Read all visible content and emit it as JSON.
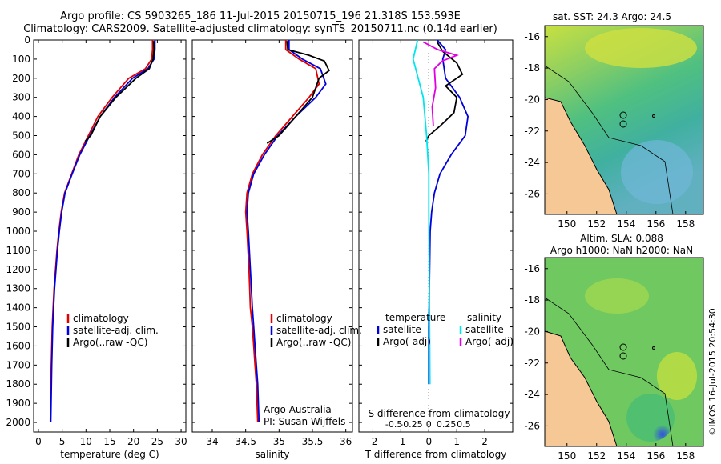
{
  "title_line1": "Argo profile: CS 5903265_186 11-Jul-2015 20150715_196 21.318S 153.593E",
  "title_line2": "Climatology: CARS2009. Satellite-adjusted climatology: synTS_20150711.nc (0.14d earlier)",
  "colors": {
    "climatology": "#e00000",
    "satellite": "#0000dd",
    "argo": "#000000",
    "sat_s": "#00e5ee",
    "argo_s": "#e000e0"
  },
  "depth_ticks": [
    "0",
    "100",
    "200",
    "300",
    "400",
    "500",
    "600",
    "700",
    "800",
    "900",
    "1000",
    "1100",
    "1200",
    "1300",
    "1400",
    "1500",
    "1600",
    "1700",
    "1800",
    "1900",
    "2000"
  ],
  "panel_temp": {
    "xlabel": "temperature (deg C)",
    "xticks": [
      "0",
      "5",
      "10",
      "15",
      "20",
      "25",
      "30"
    ],
    "legend": [
      "climatology",
      "satellite-adj. clim.",
      "Argo(..raw -QC)"
    ]
  },
  "panel_sal": {
    "xlabel": "salinity",
    "xticks": [
      "34",
      "34.5",
      "35",
      "35.5",
      "36"
    ],
    "legend": [
      "climatology",
      "satellite-adj. clim.",
      "Argo(..raw -QC)"
    ],
    "note1": "Argo Australia",
    "note2": "PI: Susan Wijffels"
  },
  "panel_diff": {
    "xlabel": "T difference from climatology",
    "top_label": "S difference from climatology",
    "xticks": [
      "-2",
      "-1",
      "0",
      "1",
      "2"
    ],
    "sticks": [
      "-0.5",
      "-0.25",
      "0",
      "0.25",
      "0.5"
    ],
    "leg_t_head": "temperature",
    "leg_s_head": "salinity",
    "leg_t": [
      "satellite",
      "Argo(-adj)"
    ],
    "leg_s": [
      "satellite",
      "Argo(-adj)"
    ]
  },
  "map_top": {
    "label": "sat. SST: 24.3 Argo: 24.5",
    "yticks": [
      "-16",
      "-18",
      "-20",
      "-22",
      "-24",
      "-26"
    ],
    "xticks": [
      "150",
      "152",
      "154",
      "156",
      "158"
    ]
  },
  "map_bottom": {
    "label1": "Altim. SLA: 0.088",
    "label2": "Argo h1000: NaN h2000: NaN",
    "yticks": [
      "-16",
      "-18",
      "-20",
      "-22",
      "-24",
      "-26"
    ],
    "xticks": [
      "150",
      "152",
      "154",
      "156",
      "158"
    ]
  },
  "watermark": "©IMOS 16-Jul-2015 20:54:30",
  "chart_data": [
    {
      "type": "line",
      "xlabel": "temperature (deg C)",
      "ylabel": "depth",
      "xlim": [
        -1,
        31
      ],
      "ylim": [
        2050,
        0
      ],
      "series": [
        {
          "name": "climatology",
          "x": [
            24,
            24,
            23.8,
            22.5,
            19,
            15.5,
            12.5,
            10.5,
            8.5,
            7,
            5.5,
            4.8,
            4.3,
            3.9,
            3.6,
            3.3,
            3.1,
            2.9,
            2.8,
            2.7,
            2.5
          ],
          "y": [
            0,
            50,
            100,
            150,
            200,
            300,
            400,
            500,
            600,
            700,
            800,
            900,
            1000,
            1100,
            1200,
            1300,
            1400,
            1500,
            1600,
            1700,
            2000
          ]
        },
        {
          "name": "satellite-adj. clim.",
          "x": [
            24.5,
            24.5,
            24.3,
            23,
            19.8,
            16,
            13,
            10.8,
            8.7,
            7.1,
            5.6,
            4.9,
            4.4,
            4,
            3.7,
            3.4,
            3.2,
            3,
            2.9,
            2.8,
            2.6
          ],
          "y": [
            0,
            50,
            100,
            150,
            200,
            300,
            400,
            500,
            600,
            700,
            800,
            900,
            1000,
            1100,
            1200,
            1300,
            1400,
            1500,
            1600,
            1700,
            2000
          ]
        },
        {
          "name": "Argo(..raw -QC)",
          "x": [
            24.2,
            24.3,
            24.1,
            23.3,
            20.5,
            16.3,
            13,
            11,
            9.8
          ],
          "y": [
            5,
            50,
            100,
            150,
            200,
            300,
            400,
            500,
            530
          ]
        }
      ]
    },
    {
      "type": "line",
      "xlabel": "salinity",
      "ylabel": "depth",
      "xlim": [
        33.7,
        36.1
      ],
      "ylim": [
        2050,
        0
      ],
      "series": [
        {
          "name": "climatology",
          "x": [
            35.1,
            35.1,
            35.3,
            35.55,
            35.6,
            35.45,
            35.2,
            34.95,
            34.75,
            34.6,
            34.52,
            34.5,
            34.52,
            34.55,
            34.57,
            34.6,
            34.62,
            34.64,
            34.66,
            34.68
          ],
          "y": [
            0,
            50,
            100,
            150,
            230,
            300,
            400,
            500,
            600,
            700,
            800,
            900,
            1000,
            1200,
            1400,
            1500,
            1600,
            1700,
            1800,
            2000
          ]
        },
        {
          "name": "satellite-adj. clim.",
          "x": [
            35.15,
            35.15,
            35.35,
            35.62,
            35.7,
            35.55,
            35.25,
            34.98,
            34.78,
            34.62,
            34.54,
            34.52,
            34.54,
            34.57,
            34.6,
            34.62,
            34.64,
            34.66,
            34.68,
            34.7
          ],
          "y": [
            0,
            50,
            100,
            150,
            230,
            300,
            400,
            500,
            600,
            700,
            800,
            900,
            1000,
            1200,
            1400,
            1500,
            1600,
            1700,
            1800,
            2000
          ]
        },
        {
          "name": "Argo(..raw -QC)",
          "x": [
            35.12,
            35.13,
            35.45,
            35.68,
            35.75,
            35.6,
            35.5,
            35.25,
            35.0,
            34.82
          ],
          "y": [
            5,
            50,
            80,
            110,
            160,
            200,
            300,
            400,
            500,
            540
          ]
        }
      ]
    },
    {
      "type": "line",
      "xlabel": "T difference from climatology",
      "ylabel": "depth",
      "xlim": [
        -2.5,
        3
      ],
      "ylim": [
        2050,
        0
      ],
      "series": [
        {
          "name": "temperature satellite",
          "x": [
            0.3,
            0.6,
            0.5,
            0.6,
            1.1,
            1.4,
            1.3,
            0.8,
            0.4,
            0.2,
            0.1,
            0.05,
            0,
            0
          ],
          "y": [
            0,
            50,
            100,
            200,
            300,
            400,
            500,
            600,
            700,
            800,
            900,
            1000,
            1500,
            1800
          ]
        },
        {
          "name": "temperature Argo(-adj)",
          "x": [
            0.3,
            0.5,
            1.0,
            1.2,
            0.6,
            1.0,
            0.9,
            0.4,
            0.0,
            -0.1
          ],
          "y": [
            10,
            60,
            120,
            180,
            240,
            300,
            380,
            450,
            500,
            530
          ]
        },
        {
          "name": "salinity satellite",
          "x": [
            -0.1,
            -0.14,
            -0.05,
            -0.02,
            0,
            0,
            0.01
          ],
          "y": [
            0,
            100,
            300,
            500,
            700,
            900,
            1800
          ]
        },
        {
          "name": "salinity Argo(-adj)",
          "x": [
            -0.05,
            0.08,
            0.25,
            0.12,
            0.05,
            0.06,
            0.03,
            0.04
          ],
          "y": [
            10,
            50,
            80,
            110,
            150,
            250,
            350,
            450
          ]
        }
      ]
    }
  ]
}
